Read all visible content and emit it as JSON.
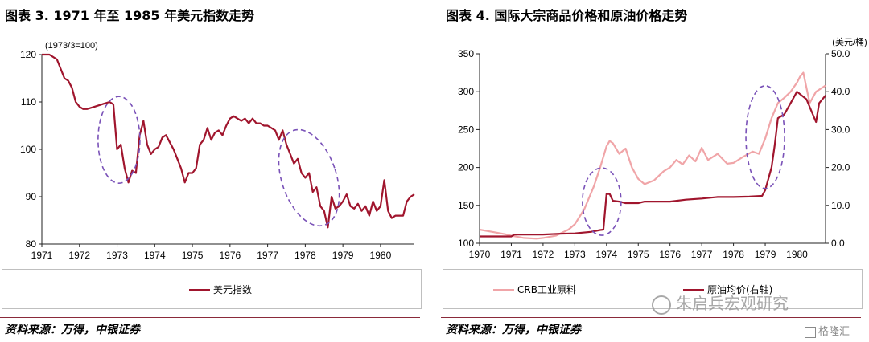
{
  "left": {
    "title": "图表 3. 1971 年至 1985 年美元指数走势",
    "source": "资料来源：万得，中银证券",
    "legend": "美元指数"
  },
  "right": {
    "title": "图表 4. 国际大宗商品价格和原油价格走势",
    "source": "资料来源：万得，中银证券",
    "legend_crb": "CRB工业原料",
    "legend_oil": "原油均价(右轴)"
  },
  "watermark": "朱启兵宏观研究",
  "brand": "格隆汇",
  "chart_data": [
    {
      "type": "line",
      "title": "图表 3. 1971 年至 1985 年美元指数走势",
      "unit_label": "(1973/3=100)",
      "ylim": [
        80,
        120
      ],
      "yticks": [
        80,
        90,
        100,
        110,
        120
      ],
      "xlim": [
        1971,
        1980.9
      ],
      "xticks": [
        "1971",
        "1972",
        "1973",
        "1974",
        "1975",
        "1976",
        "1977",
        "1978",
        "1979",
        "1980"
      ],
      "series": [
        {
          "name": "美元指数",
          "color": "#a0152d",
          "x": [
            1971.0,
            1971.2,
            1971.4,
            1971.6,
            1971.7,
            1971.8,
            1971.9,
            1972.0,
            1972.1,
            1972.2,
            1972.4,
            1972.6,
            1972.8,
            1972.9,
            1973.0,
            1973.1,
            1973.2,
            1973.3,
            1973.4,
            1973.5,
            1973.6,
            1973.7,
            1973.8,
            1973.9,
            1974.0,
            1974.1,
            1974.2,
            1974.3,
            1974.4,
            1974.5,
            1974.6,
            1974.7,
            1974.8,
            1974.9,
            1975.0,
            1975.1,
            1975.2,
            1975.3,
            1975.4,
            1975.5,
            1975.6,
            1975.7,
            1975.8,
            1975.9,
            1976.0,
            1976.1,
            1976.2,
            1976.3,
            1976.4,
            1976.5,
            1976.6,
            1976.7,
            1976.8,
            1976.9,
            1977.0,
            1977.1,
            1977.2,
            1977.3,
            1977.4,
            1977.5,
            1977.6,
            1977.7,
            1977.8,
            1977.9,
            1978.0,
            1978.1,
            1978.2,
            1978.3,
            1978.4,
            1978.5,
            1978.6,
            1978.7,
            1978.8,
            1978.9,
            1979.0,
            1979.1,
            1979.2,
            1979.3,
            1979.4,
            1979.5,
            1979.6,
            1979.7,
            1979.8,
            1979.9,
            1980.0,
            1980.1,
            1980.2,
            1980.3,
            1980.4,
            1980.5,
            1980.6,
            1980.7,
            1980.8,
            1980.9
          ],
          "y": [
            120.0,
            120.0,
            119.0,
            115.0,
            114.5,
            113.0,
            110.0,
            109.0,
            108.5,
            108.5,
            109.0,
            109.5,
            110.0,
            109.5,
            100.0,
            101.0,
            96.0,
            93.0,
            95.5,
            95.0,
            103.0,
            106.0,
            101.0,
            99.0,
            100.0,
            100.5,
            102.5,
            103.0,
            101.5,
            100.0,
            98.0,
            96.0,
            93.0,
            95.0,
            95.0,
            96.0,
            101.0,
            102.0,
            104.5,
            102.0,
            103.5,
            104.0,
            103.0,
            105.0,
            106.5,
            107.0,
            106.5,
            106.0,
            106.5,
            105.5,
            106.5,
            105.5,
            105.5,
            105.0,
            105.0,
            104.5,
            104.0,
            102.0,
            104.0,
            101.0,
            99.0,
            97.0,
            98.0,
            95.0,
            94.0,
            95.0,
            91.0,
            92.0,
            88.0,
            87.0,
            83.5,
            90.0,
            87.5,
            88.0,
            89.0,
            90.5,
            88.0,
            87.5,
            88.5,
            87.0,
            88.0,
            86.0,
            89.0,
            87.0,
            88.0,
            93.5,
            87.0,
            85.5,
            86.0,
            86.0,
            86.0,
            89.0,
            90.0,
            90.5
          ]
        }
      ],
      "annotations": [
        "dashed-ellipse-1973",
        "dashed-ellipse-1978"
      ]
    },
    {
      "type": "line",
      "title": "图表 4. 国际大宗商品价格和原油价格走势",
      "unit_label": "(美元/桶)",
      "ylim": [
        100,
        350
      ],
      "yticks": [
        100,
        150,
        200,
        250,
        300,
        350
      ],
      "y2lim": [
        0,
        50
      ],
      "y2ticks": [
        "0.0",
        "10.0",
        "20.0",
        "30.0",
        "40.0",
        "50.0"
      ],
      "xlim": [
        1970,
        1980.9
      ],
      "xticks": [
        "1970",
        "1971",
        "1972",
        "1973",
        "1974",
        "1975",
        "1976",
        "1977",
        "1978",
        "1979",
        "1980"
      ],
      "series": [
        {
          "name": "CRB工业原料",
          "axis": "left",
          "color": "#f0a5a8",
          "x": [
            1970.0,
            1970.4,
            1970.8,
            1971.0,
            1971.4,
            1971.8,
            1972.0,
            1972.4,
            1972.8,
            1973.0,
            1973.3,
            1973.6,
            1973.8,
            1974.0,
            1974.1,
            1974.2,
            1974.4,
            1974.6,
            1974.8,
            1975.0,
            1975.2,
            1975.5,
            1975.8,
            1976.0,
            1976.2,
            1976.4,
            1976.6,
            1976.8,
            1977.0,
            1977.2,
            1977.5,
            1977.8,
            1978.0,
            1978.3,
            1978.6,
            1978.8,
            1979.0,
            1979.2,
            1979.4,
            1979.6,
            1979.8,
            1980.0,
            1980.1,
            1980.2,
            1980.4,
            1980.6,
            1980.9
          ],
          "y": [
            118,
            115,
            112,
            110,
            107,
            106,
            107,
            110,
            118,
            125,
            145,
            175,
            200,
            228,
            235,
            232,
            218,
            225,
            200,
            185,
            178,
            183,
            195,
            200,
            210,
            204,
            216,
            208,
            226,
            210,
            218,
            205,
            206,
            214,
            221,
            218,
            238,
            265,
            285,
            292,
            300,
            312,
            320,
            325,
            285,
            300,
            308
          ]
        },
        {
          "name": "原油均价(右轴)",
          "axis": "right",
          "color": "#a0152d",
          "x": [
            1970.0,
            1971.0,
            1971.1,
            1972.0,
            1972.5,
            1973.0,
            1973.5,
            1973.8,
            1973.9,
            1974.0,
            1974.1,
            1974.2,
            1974.4,
            1974.6,
            1975.0,
            1975.2,
            1976.0,
            1976.5,
            1977.0,
            1977.5,
            1978.0,
            1978.5,
            1978.9,
            1979.0,
            1979.2,
            1979.3,
            1979.4,
            1979.6,
            1979.8,
            1980.0,
            1980.3,
            1980.5,
            1980.6,
            1980.7,
            1980.9
          ],
          "y": [
            1.8,
            1.8,
            2.3,
            2.3,
            2.5,
            2.6,
            3.0,
            3.5,
            3.6,
            13.0,
            13.0,
            11.2,
            11.0,
            10.6,
            10.6,
            11.0,
            11.0,
            11.5,
            11.8,
            12.2,
            12.2,
            12.3,
            12.5,
            14.0,
            20.0,
            26.0,
            33.0,
            34.0,
            37.0,
            40.0,
            38.0,
            34.0,
            32.0,
            37.0,
            39.0
          ]
        }
      ],
      "annotations": [
        "dashed-ellipse-1974",
        "dashed-ellipse-1979"
      ]
    }
  ]
}
